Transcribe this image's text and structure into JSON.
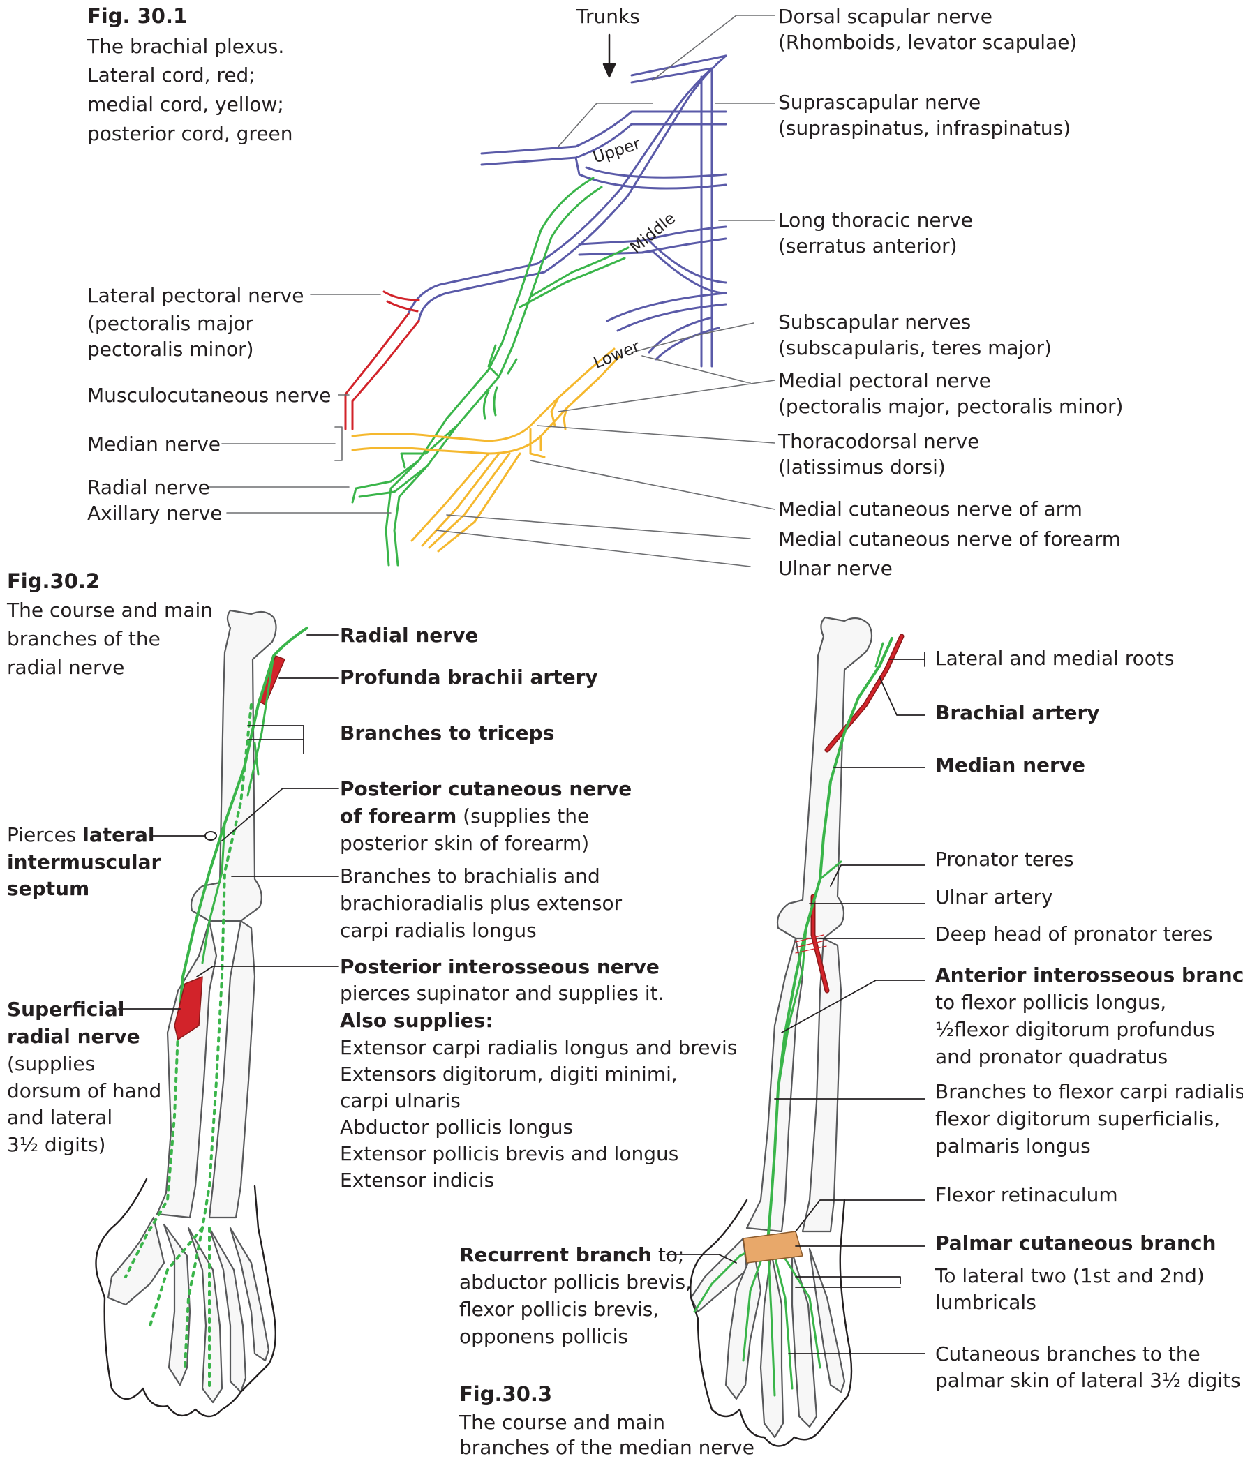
{
  "fig1": {
    "title": "Fig. 30.1",
    "caption": [
      "The brachial plexus.",
      " Lateral cord, red;",
      "medial cord, yellow;",
      "posterior cord, green"
    ],
    "trunks_label": "Trunks",
    "trunk_upper": "Upper",
    "trunk_middle": "Middle",
    "trunk_lower": "Lower",
    "left_labels": [
      [
        "Lateral pectoral nerve",
        "(pectoralis major",
        "pectoralis minor)"
      ],
      [
        "Musculocutaneous nerve"
      ],
      [
        "Median nerve"
      ],
      [
        "Radial nerve"
      ],
      [
        "Axillary nerve"
      ]
    ],
    "right_labels": [
      [
        "Dorsal scapular nerve",
        "(Rhomboids, levator scapulae)"
      ],
      [
        "Suprascapular nerve",
        "(supraspinatus, infraspinatus)"
      ],
      [
        "Long thoracic nerve",
        "(serratus anterior)"
      ],
      [
        "Subscapular nerves",
        "(subscapularis, teres major)"
      ],
      [
        "Medial pectoral nerve",
        "(pectoralis major, pectoralis minor)"
      ],
      [
        "Thoracodorsal nerve",
        "(latissimus dorsi)"
      ],
      [
        "Medial cutaneous nerve of arm"
      ],
      [
        "Medial cutaneous nerve of forearm"
      ],
      [
        "Ulnar nerve"
      ]
    ],
    "colors": {
      "lateral_cord": "#d2232a",
      "medial_cord": "#f5b82e",
      "posterior_cord": "#3ab54a",
      "roots": "#5a5aa8"
    }
  },
  "fig2": {
    "title": "Fig.30.2",
    "caption": [
      "The course and main",
      "branches of the",
      "radial nerve"
    ],
    "radial_nerve": "Radial nerve",
    "profunda": "Profunda brachii artery",
    "triceps": "Branches to triceps",
    "post_cut_bold": [
      "Posterior cutaneous nerve",
      "of forearm"
    ],
    "post_cut_rest": [
      " (supplies the",
      "posterior skin of forearm)"
    ],
    "brachialis": [
      "Branches to brachialis and",
      "brachioradialis plus extensor",
      "carpi radialis longus"
    ],
    "pierces_plain": "Pierces ",
    "pierces_bold": [
      "lateral",
      "intermuscular",
      "septum"
    ],
    "post_interosseous": "Posterior interosseous nerve",
    "pin_text": "pierces supinator and supplies it.",
    "also": "Also supplies:",
    "also_list": [
      "Extensor carpi radialis longus and brevis",
      "Extensors digitorum, digiti minimi,",
      "carpi ulnaris",
      "Abductor pollicis longus",
      "Extensor pollicis brevis and longus",
      "Extensor indicis"
    ],
    "superficial_bold": [
      "Superficial",
      "radial nerve"
    ],
    "superficial_rest": [
      "(supplies",
      "dorsum of hand",
      "and lateral",
      "3½ digits)"
    ]
  },
  "fig3": {
    "title": "Fig.30.3",
    "caption": [
      "The course and main",
      "branches of the median nerve"
    ],
    "roots": "Lateral and medial roots",
    "brachial_artery": "Brachial artery",
    "median_nerve": "Median nerve",
    "pronator_teres": "Pronator teres",
    "ulnar_artery": "Ulnar artery",
    "deep_head": "Deep head of pronator teres",
    "anterior_bold": "Anterior interosseous branch",
    "anterior_rest": [
      "to flexor pollicis longus,",
      "½flexor digitorum profundus",
      "and pronator quadratus"
    ],
    "branches_fcr": [
      "Branches to flexor carpi radialis",
      "flexor digitorum superficialis,",
      "palmaris longus"
    ],
    "flexor_ret": "Flexor retinaculum",
    "palmar_cut": "Palmar cutaneous branch",
    "lumbricals": [
      "To lateral two (1st and 2nd)",
      "lumbricals"
    ],
    "cutaneous": [
      "Cutaneous branches to the",
      "palmar skin of lateral 3½ digits"
    ],
    "recurrent_bold": "Recurrent branch",
    "recurrent_to": " to;",
    "recurrent_list": [
      "abductor pollicis brevis,",
      "flexor pollicis brevis,",
      "opponens pollicis"
    ]
  }
}
